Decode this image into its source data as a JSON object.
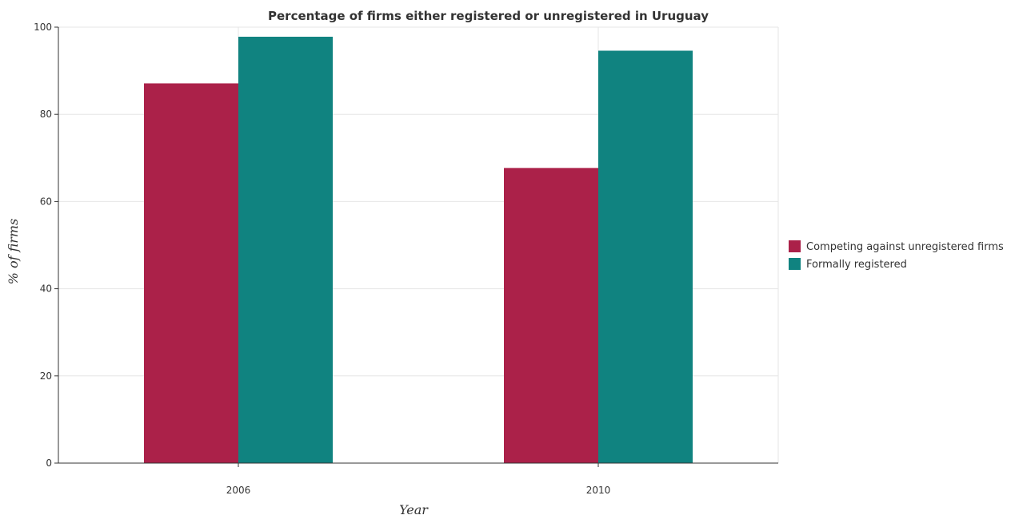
{
  "chart_data": {
    "type": "bar",
    "title": "Percentage of firms either registered or unregistered in Uruguay",
    "xlabel": "Year",
    "ylabel": "% of firms",
    "categories": [
      "2006",
      "2010"
    ],
    "series": [
      {
        "name": "Competing against unregistered firms",
        "color": "#ab2149",
        "values": [
          87.1,
          67.7
        ]
      },
      {
        "name": "Formally registered",
        "color": "#108380",
        "values": [
          97.8,
          94.6
        ]
      }
    ],
    "ylim": [
      0,
      100
    ],
    "yticks": [
      "0",
      "20",
      "40",
      "60",
      "80",
      "100"
    ],
    "grid": true,
    "legend_position": "right"
  }
}
